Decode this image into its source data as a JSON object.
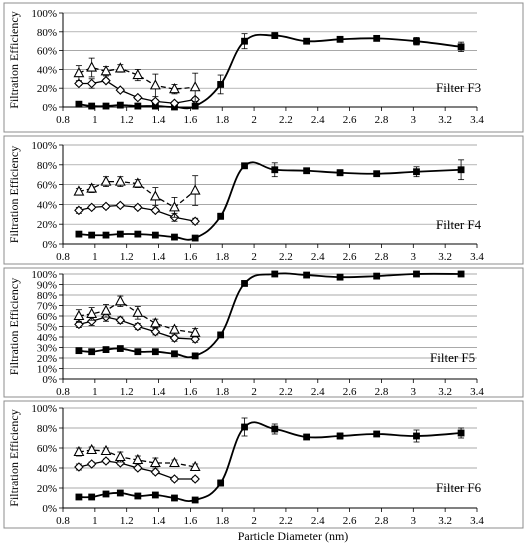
{
  "colors": {
    "line": "#000000",
    "grid": "#8c8c8c",
    "frame": "#8c8c8c",
    "background": "#ffffff"
  },
  "x_label": "Particle Diameter (nm)",
  "y_label": "Filtration Efficiency",
  "chart_data": [
    {
      "type": "line",
      "filter_label": "Filter F3",
      "ylabel": "Filtration Efficiency",
      "xlabel": "",
      "xlim": [
        0.8,
        3.4
      ],
      "ylim": [
        0,
        100
      ],
      "x_ticks": [
        "0.8",
        "1",
        "1.2",
        "1.4",
        "1.6",
        "1.8",
        "2",
        "2.2",
        "2.4",
        "2.6",
        "2.8",
        "3",
        "3.2",
        "3.4"
      ],
      "y_ticks": [
        "0%",
        "20%",
        "40%",
        "60%",
        "80%",
        "100%"
      ],
      "grid": "horizontal",
      "series": [
        {
          "marker": "square",
          "style": "solid",
          "smooth": true,
          "points": [
            [
              0.9,
              3
            ],
            [
              0.98,
              1
            ],
            [
              1.07,
              1
            ],
            [
              1.16,
              2
            ],
            [
              1.27,
              1
            ],
            [
              1.38,
              1
            ],
            [
              1.5,
              0
            ],
            [
              1.63,
              1
            ],
            [
              1.79,
              24
            ],
            [
              1.94,
              70
            ],
            [
              2.13,
              76
            ],
            [
              2.33,
              70
            ],
            [
              2.54,
              72
            ],
            [
              2.77,
              73
            ],
            [
              3.02,
              70
            ],
            [
              3.3,
              64
            ]
          ],
          "errors": [
            1,
            1,
            1,
            1,
            1,
            1,
            1,
            1,
            10,
            8,
            3,
            2,
            3,
            2,
            4,
            5
          ]
        },
        {
          "marker": "diamond",
          "style": "solid",
          "smooth": false,
          "points": [
            [
              0.9,
              25
            ],
            [
              0.98,
              25
            ],
            [
              1.07,
              28
            ],
            [
              1.16,
              18
            ],
            [
              1.27,
              10
            ],
            [
              1.38,
              6
            ],
            [
              1.5,
              4
            ],
            [
              1.63,
              8
            ]
          ],
          "errors": [
            2,
            5,
            2,
            2,
            2,
            2,
            2,
            2
          ]
        },
        {
          "marker": "triangle",
          "style": "dashed",
          "smooth": false,
          "points": [
            [
              0.9,
              36
            ],
            [
              0.98,
              42
            ],
            [
              1.07,
              38
            ],
            [
              1.16,
              41
            ],
            [
              1.27,
              34
            ],
            [
              1.38,
              23
            ],
            [
              1.5,
              19
            ],
            [
              1.63,
              21
            ]
          ],
          "errors": [
            8,
            10,
            5,
            4,
            6,
            12,
            5,
            15
          ]
        }
      ]
    },
    {
      "type": "line",
      "filter_label": "Filter F4",
      "ylabel": "Filtration Efficiency",
      "xlabel": "",
      "xlim": [
        0.8,
        3.4
      ],
      "ylim": [
        0,
        100
      ],
      "x_ticks": [
        "0.8",
        "1",
        "1.2",
        "1.4",
        "1.6",
        "1.8",
        "2",
        "2.2",
        "2.4",
        "2.6",
        "2.8",
        "3",
        "3.2",
        "3.4"
      ],
      "y_ticks": [
        "0%",
        "20%",
        "40%",
        "60%",
        "80%",
        "100%"
      ],
      "grid": "horizontal",
      "series": [
        {
          "marker": "square",
          "style": "solid",
          "smooth": true,
          "points": [
            [
              0.9,
              10
            ],
            [
              0.98,
              9
            ],
            [
              1.07,
              9
            ],
            [
              1.16,
              10
            ],
            [
              1.27,
              10
            ],
            [
              1.38,
              9
            ],
            [
              1.5,
              7
            ],
            [
              1.63,
              6
            ],
            [
              1.79,
              28
            ],
            [
              1.94,
              79
            ],
            [
              2.13,
              75
            ],
            [
              2.33,
              74
            ],
            [
              2.54,
              72
            ],
            [
              2.77,
              71
            ],
            [
              3.02,
              73
            ],
            [
              3.3,
              75
            ]
          ],
          "errors": [
            1,
            1,
            1,
            1,
            1,
            1,
            1,
            1,
            3,
            2,
            7,
            2,
            3,
            2,
            5,
            10
          ]
        },
        {
          "marker": "diamond",
          "style": "solid",
          "smooth": false,
          "points": [
            [
              0.9,
              34
            ],
            [
              0.98,
              37
            ],
            [
              1.07,
              38
            ],
            [
              1.16,
              39
            ],
            [
              1.27,
              37
            ],
            [
              1.38,
              34
            ],
            [
              1.5,
              27
            ],
            [
              1.63,
              23
            ]
          ],
          "errors": [
            3,
            2,
            2,
            2,
            2,
            2,
            4,
            3
          ]
        },
        {
          "marker": "triangle",
          "style": "dashed",
          "smooth": false,
          "points": [
            [
              0.9,
              53
            ],
            [
              0.98,
              56
            ],
            [
              1.07,
              63
            ],
            [
              1.16,
              63
            ],
            [
              1.27,
              61
            ],
            [
              1.38,
              48
            ],
            [
              1.5,
              37
            ],
            [
              1.63,
              54
            ]
          ],
          "errors": [
            3,
            4,
            5,
            5,
            4,
            9,
            10,
            15
          ]
        }
      ]
    },
    {
      "type": "line",
      "filter_label": "Filter F5",
      "ylabel": "Filtration Efficiency",
      "xlabel": "",
      "xlim": [
        0.8,
        3.4
      ],
      "ylim": [
        0,
        100
      ],
      "x_ticks": [
        "0.8",
        "1",
        "1.2",
        "1.4",
        "1.6",
        "1.8",
        "2",
        "2.2",
        "2.4",
        "2.6",
        "2.8",
        "3",
        "3.2",
        "3.4"
      ],
      "y_ticks": [
        "0%",
        "10%",
        "20%",
        "30%",
        "40%",
        "50%",
        "60%",
        "70%",
        "80%",
        "90%",
        "100%"
      ],
      "grid": "horizontal",
      "series": [
        {
          "marker": "square",
          "style": "solid",
          "smooth": true,
          "points": [
            [
              0.9,
              27
            ],
            [
              0.98,
              26
            ],
            [
              1.07,
              28
            ],
            [
              1.16,
              29
            ],
            [
              1.27,
              26
            ],
            [
              1.38,
              26
            ],
            [
              1.5,
              24
            ],
            [
              1.63,
              22
            ],
            [
              1.79,
              42
            ],
            [
              1.94,
              91
            ],
            [
              2.13,
              100
            ],
            [
              2.33,
              99
            ],
            [
              2.54,
              97
            ],
            [
              2.77,
              98
            ],
            [
              3.02,
              100
            ],
            [
              3.3,
              100
            ]
          ],
          "errors": [
            1,
            1,
            1,
            1,
            1,
            1,
            1,
            1,
            2,
            2,
            1,
            1,
            2,
            1,
            1,
            1
          ]
        },
        {
          "marker": "diamond",
          "style": "solid",
          "smooth": false,
          "points": [
            [
              0.9,
              52
            ],
            [
              0.98,
              55
            ],
            [
              1.07,
              59
            ],
            [
              1.16,
              56
            ],
            [
              1.27,
              50
            ],
            [
              1.38,
              45
            ],
            [
              1.5,
              39
            ],
            [
              1.63,
              38
            ]
          ],
          "errors": [
            3,
            4,
            4,
            3,
            3,
            3,
            3,
            3
          ]
        },
        {
          "marker": "triangle",
          "style": "dashed",
          "smooth": false,
          "points": [
            [
              0.9,
              60
            ],
            [
              0.98,
              62
            ],
            [
              1.07,
              65
            ],
            [
              1.16,
              74
            ],
            [
              1.27,
              63
            ],
            [
              1.38,
              53
            ],
            [
              1.5,
              47
            ],
            [
              1.63,
              44
            ]
          ],
          "errors": [
            6,
            6,
            6,
            5,
            6,
            4,
            3,
            4
          ]
        }
      ]
    },
    {
      "type": "line",
      "filter_label": "Filter F6",
      "ylabel": "Filtration Efficiency",
      "xlabel": "Particle Diameter (nm)",
      "xlim": [
        0.8,
        3.4
      ],
      "ylim": [
        0,
        100
      ],
      "x_ticks": [
        "0.8",
        "1",
        "1.2",
        "1.4",
        "1.6",
        "1.8",
        "2",
        "2.2",
        "2.4",
        "2.6",
        "2.8",
        "3",
        "3.2",
        "3.4"
      ],
      "y_ticks": [
        "0%",
        "20%",
        "40%",
        "60%",
        "80%",
        "100%"
      ],
      "grid": "horizontal",
      "series": [
        {
          "marker": "square",
          "style": "solid",
          "smooth": true,
          "points": [
            [
              0.9,
              11
            ],
            [
              0.98,
              11
            ],
            [
              1.07,
              14
            ],
            [
              1.16,
              15
            ],
            [
              1.27,
              12
            ],
            [
              1.38,
              13
            ],
            [
              1.5,
              10
            ],
            [
              1.63,
              8
            ],
            [
              1.79,
              25
            ],
            [
              1.94,
              81
            ],
            [
              2.13,
              79
            ],
            [
              2.33,
              71
            ],
            [
              2.54,
              72
            ],
            [
              2.77,
              74
            ],
            [
              3.02,
              72
            ],
            [
              3.3,
              75
            ]
          ],
          "errors": [
            1,
            1,
            1,
            1,
            1,
            1,
            1,
            1,
            3,
            9,
            5,
            2,
            3,
            2,
            6,
            5
          ]
        },
        {
          "marker": "diamond",
          "style": "solid",
          "smooth": false,
          "points": [
            [
              0.9,
              41
            ],
            [
              0.98,
              44
            ],
            [
              1.07,
              47
            ],
            [
              1.16,
              45
            ],
            [
              1.27,
              40
            ],
            [
              1.38,
              36
            ],
            [
              1.5,
              29
            ],
            [
              1.63,
              29
            ]
          ],
          "errors": [
            3,
            2,
            2,
            2,
            2,
            2,
            2,
            2
          ]
        },
        {
          "marker": "triangle",
          "style": "dashed",
          "smooth": false,
          "points": [
            [
              0.9,
              56
            ],
            [
              0.98,
              58
            ],
            [
              1.07,
              57
            ],
            [
              1.16,
              51
            ],
            [
              1.27,
              48
            ],
            [
              1.38,
              45
            ],
            [
              1.5,
              45
            ],
            [
              1.63,
              41
            ]
          ],
          "errors": [
            4,
            3,
            3,
            5,
            4,
            5,
            3,
            3
          ]
        }
      ]
    }
  ]
}
